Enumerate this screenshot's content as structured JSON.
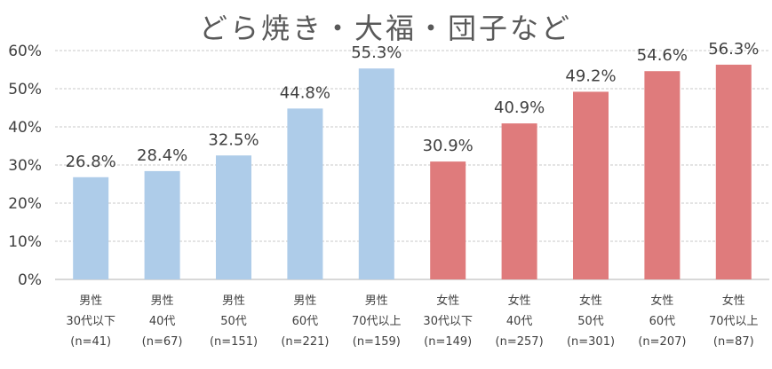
{
  "chart_data": {
    "type": "bar",
    "title": "どら焼き・大福・団子など",
    "xlabel": "",
    "ylabel": "",
    "ylim": [
      0,
      60
    ],
    "yticks": [
      "0%",
      "10%",
      "20%",
      "30%",
      "40%",
      "50%",
      "60%"
    ],
    "grid": true,
    "legend": "none",
    "categories": [
      [
        "男性",
        "30代以下",
        "(n=41)"
      ],
      [
        "男性",
        "40代",
        "(n=67)"
      ],
      [
        "男性",
        "50代",
        "(n=151)"
      ],
      [
        "男性",
        "60代",
        "(n=221)"
      ],
      [
        "男性",
        "70代以上",
        "(n=159)"
      ],
      [
        "女性",
        "30代以下",
        "(n=149)"
      ],
      [
        "女性",
        "40代",
        "(n=257)"
      ],
      [
        "女性",
        "50代",
        "(n=301)"
      ],
      [
        "女性",
        "60代",
        "(n=207)"
      ],
      [
        "女性",
        "70代以上",
        "(n=87)"
      ]
    ],
    "values": [
      26.8,
      28.4,
      32.5,
      44.8,
      55.3,
      30.9,
      40.9,
      49.2,
      54.6,
      56.3
    ],
    "data_labels": [
      "26.8%",
      "28.4%",
      "32.5%",
      "44.8%",
      "55.3%",
      "30.9%",
      "40.9%",
      "49.2%",
      "54.6%",
      "56.3%"
    ],
    "bar_colors": [
      "#aecce9",
      "#aecce9",
      "#aecce9",
      "#aecce9",
      "#aecce9",
      "#df7b7c",
      "#df7b7c",
      "#df7b7c",
      "#df7b7c",
      "#df7b7c"
    ]
  }
}
